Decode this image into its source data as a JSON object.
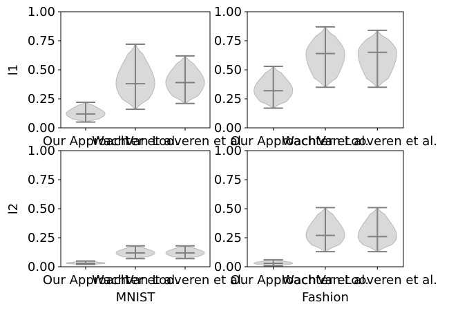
{
  "chart_data": [
    {
      "type": "violin",
      "ylabel": "l1",
      "xlabel": "",
      "ylim": [
        0,
        1
      ],
      "yticks": [
        "0.00",
        "0.25",
        "0.50",
        "0.75",
        "1.00"
      ],
      "categories": [
        "Our Approach",
        "Wachter et al.",
        "Van Looveren et al."
      ],
      "violins": [
        {
          "min": 0.05,
          "median": 0.12,
          "max": 0.22
        },
        {
          "min": 0.16,
          "median": 0.38,
          "max": 0.72
        },
        {
          "min": 0.21,
          "median": 0.39,
          "max": 0.62
        }
      ]
    },
    {
      "type": "violin",
      "ylabel": "",
      "xlabel": "",
      "ylim": [
        0,
        1
      ],
      "yticks": [
        "0.00",
        "0.25",
        "0.50",
        "0.75",
        "1.00"
      ],
      "categories": [
        "Our Approach",
        "Wachter et al.",
        "Van Looveren et al."
      ],
      "violins": [
        {
          "min": 0.17,
          "median": 0.32,
          "max": 0.53
        },
        {
          "min": 0.35,
          "median": 0.64,
          "max": 0.87
        },
        {
          "min": 0.35,
          "median": 0.65,
          "max": 0.84
        }
      ]
    },
    {
      "type": "violin",
      "ylabel": "l2",
      "xlabel": "MNIST",
      "ylim": [
        0,
        1
      ],
      "yticks": [
        "0.00",
        "0.25",
        "0.50",
        "0.75",
        "1.00"
      ],
      "categories": [
        "Our Approach",
        "Wachter et al.",
        "Van Looveren et al."
      ],
      "violins": [
        {
          "min": 0.02,
          "median": 0.03,
          "max": 0.05
        },
        {
          "min": 0.07,
          "median": 0.12,
          "max": 0.18
        },
        {
          "min": 0.07,
          "median": 0.12,
          "max": 0.18
        }
      ]
    },
    {
      "type": "violin",
      "ylabel": "",
      "xlabel": "Fashion",
      "ylim": [
        0,
        1
      ],
      "yticks": [
        "0.00",
        "0.25",
        "0.50",
        "0.75",
        "1.00"
      ],
      "categories": [
        "Our Approach",
        "Wachter et al.",
        "Van Looveren et al."
      ],
      "violins": [
        {
          "min": 0.01,
          "median": 0.03,
          "max": 0.06
        },
        {
          "min": 0.13,
          "median": 0.27,
          "max": 0.51
        },
        {
          "min": 0.13,
          "median": 0.26,
          "max": 0.51
        }
      ]
    }
  ],
  "colors": {
    "violin_fill": "#cccccc",
    "violin_edge": "#b8b8b8",
    "stat_lines": "#808080",
    "axes": "#000000"
  }
}
